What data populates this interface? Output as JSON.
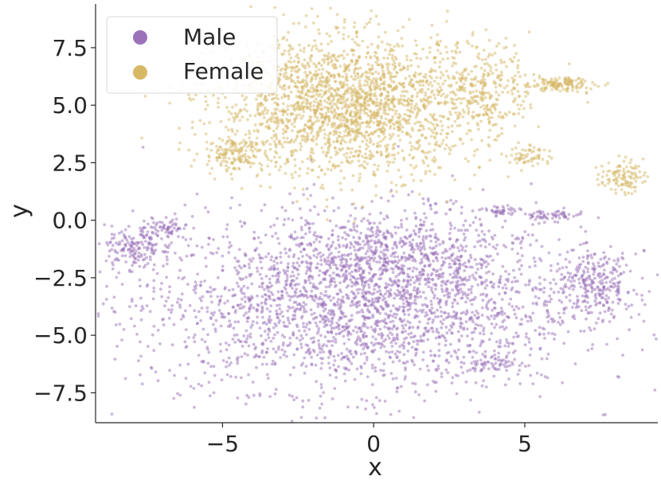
{
  "chart_data": {
    "type": "scatter",
    "title": "",
    "xlabel": "x",
    "ylabel": "y",
    "xlim": [
      -9.2,
      9.4
    ],
    "ylim": [
      -8.8,
      9.4
    ],
    "xticks": [
      -5,
      0,
      5
    ],
    "xtick_labels": [
      "−5",
      "0",
      "5"
    ],
    "yticks": [
      -7.5,
      -5.0,
      -2.5,
      0.0,
      2.5,
      5.0,
      7.5
    ],
    "ytick_labels": [
      "−7.5",
      "−5.0",
      "−2.5",
      "0.0",
      "2.5",
      "5.0",
      "7.5"
    ],
    "grid": false,
    "legend_position": "top-left",
    "series": [
      {
        "name": "Male",
        "color": "#9b72b9",
        "clusters": [
          {
            "cx": -0.5,
            "cy": -3.6,
            "sx": 3.6,
            "sy": 1.9,
            "n": 2600
          },
          {
            "cx": -8.0,
            "cy": -1.3,
            "sx": 0.45,
            "sy": 0.5,
            "n": 140
          },
          {
            "cx": -6.9,
            "cy": -0.4,
            "sx": 0.4,
            "sy": 0.25,
            "n": 80
          },
          {
            "cx": 7.3,
            "cy": -2.8,
            "sx": 0.7,
            "sy": 0.7,
            "n": 260
          },
          {
            "cx": 4.0,
            "cy": -6.2,
            "sx": 0.5,
            "sy": 0.25,
            "n": 60
          },
          {
            "cx": 5.8,
            "cy": 0.2,
            "sx": 0.6,
            "sy": 0.12,
            "n": 60
          },
          {
            "cx": 4.2,
            "cy": 0.4,
            "sx": 0.3,
            "sy": 0.12,
            "n": 40
          },
          {
            "cx": 1.0,
            "cy": -1.5,
            "sx": 1.5,
            "sy": 1.0,
            "n": 400
          }
        ]
      },
      {
        "name": "Female",
        "color": "#d6b865",
        "clusters": [
          {
            "cx": -0.8,
            "cy": 5.0,
            "sx": 2.2,
            "sy": 1.5,
            "n": 2200
          },
          {
            "cx": -4.6,
            "cy": 2.9,
            "sx": 0.5,
            "sy": 0.4,
            "n": 140
          },
          {
            "cx": 6.1,
            "cy": 5.9,
            "sx": 0.6,
            "sy": 0.15,
            "n": 140
          },
          {
            "cx": 8.2,
            "cy": 1.9,
            "sx": 0.35,
            "sy": 0.35,
            "n": 110
          },
          {
            "cx": 5.2,
            "cy": 2.8,
            "sx": 0.35,
            "sy": 0.25,
            "n": 60
          },
          {
            "cx": 3.8,
            "cy": 5.8,
            "sx": 0.7,
            "sy": 1.0,
            "n": 220
          }
        ]
      }
    ]
  }
}
